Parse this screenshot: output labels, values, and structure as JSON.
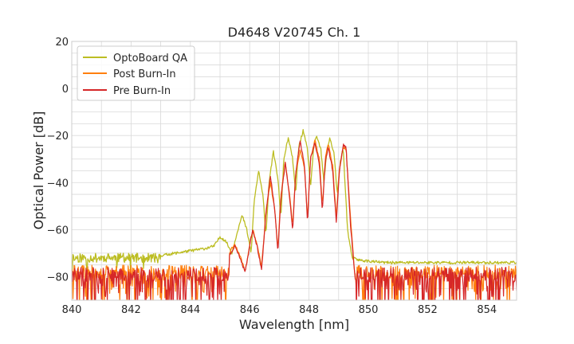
{
  "chart_data": {
    "type": "line",
    "title": "D4648 V20745 Ch. 1",
    "xlabel": "Wavelength [nm]",
    "ylabel": "Optical Power [dB]",
    "xlim": [
      840,
      855
    ],
    "ylim": [
      -90,
      20
    ],
    "xticks": [
      840,
      842,
      844,
      846,
      848,
      850,
      852,
      854
    ],
    "yticks": [
      -80,
      -60,
      -40,
      -20,
      0,
      20
    ],
    "grid": true,
    "legend_position": "top-left",
    "series": [
      {
        "name": "OptoBoard QA",
        "color": "#bcbd22",
        "noise_floor": -72,
        "points": [
          [
            843.0,
            -71
          ],
          [
            843.5,
            -70
          ],
          [
            844.0,
            -69
          ],
          [
            844.5,
            -68
          ],
          [
            844.8,
            -67
          ],
          [
            845.0,
            -63
          ],
          [
            845.2,
            -65
          ],
          [
            845.4,
            -70
          ],
          [
            845.6,
            -60
          ],
          [
            845.75,
            -54
          ],
          [
            845.9,
            -60
          ],
          [
            846.05,
            -70
          ],
          [
            846.15,
            -48
          ],
          [
            846.3,
            -35
          ],
          [
            846.45,
            -46
          ],
          [
            846.55,
            -62
          ],
          [
            846.65,
            -40
          ],
          [
            846.8,
            -27
          ],
          [
            846.95,
            -38
          ],
          [
            847.05,
            -55
          ],
          [
            847.15,
            -30
          ],
          [
            847.3,
            -21
          ],
          [
            847.45,
            -30
          ],
          [
            847.55,
            -45
          ],
          [
            847.65,
            -25
          ],
          [
            847.8,
            -18
          ],
          [
            847.95,
            -26
          ],
          [
            848.05,
            -42
          ],
          [
            848.15,
            -26
          ],
          [
            848.25,
            -20
          ],
          [
            848.4,
            -26
          ],
          [
            848.5,
            -40
          ],
          [
            848.6,
            -27
          ],
          [
            848.7,
            -21
          ],
          [
            848.85,
            -28
          ],
          [
            848.95,
            -45
          ],
          [
            849.05,
            -32
          ],
          [
            849.15,
            -25
          ],
          [
            849.3,
            -60
          ],
          [
            849.45,
            -72
          ],
          [
            849.7,
            -73
          ],
          [
            850.5,
            -74
          ],
          [
            852.0,
            -74
          ],
          [
            853.5,
            -74
          ],
          [
            855.0,
            -74
          ]
        ]
      },
      {
        "name": "Post Burn-In",
        "color": "#ff7f0e",
        "noise_floor": -78,
        "points": [
          [
            845.3,
            -70
          ],
          [
            845.5,
            -66
          ],
          [
            845.7,
            -72
          ],
          [
            845.85,
            -78
          ],
          [
            846.0,
            -66
          ],
          [
            846.1,
            -60
          ],
          [
            846.25,
            -66
          ],
          [
            846.4,
            -76
          ],
          [
            846.55,
            -52
          ],
          [
            846.7,
            -40
          ],
          [
            846.85,
            -52
          ],
          [
            846.95,
            -68
          ],
          [
            847.05,
            -46
          ],
          [
            847.2,
            -31
          ],
          [
            847.35,
            -46
          ],
          [
            847.45,
            -58
          ],
          [
            847.55,
            -36
          ],
          [
            847.7,
            -26
          ],
          [
            847.85,
            -34
          ],
          [
            847.95,
            -55
          ],
          [
            848.05,
            -30
          ],
          [
            848.2,
            -22
          ],
          [
            848.35,
            -30
          ],
          [
            848.45,
            -50
          ],
          [
            848.55,
            -30
          ],
          [
            848.65,
            -23
          ],
          [
            848.8,
            -33
          ],
          [
            848.92,
            -55
          ],
          [
            849.02,
            -35
          ],
          [
            849.15,
            -25
          ],
          [
            849.25,
            -26
          ],
          [
            849.4,
            -55
          ],
          [
            849.55,
            -80
          ]
        ]
      },
      {
        "name": "Pre Burn-In",
        "color": "#d62728",
        "noise_floor": -79,
        "points": [
          [
            845.3,
            -71
          ],
          [
            845.5,
            -67
          ],
          [
            845.7,
            -73
          ],
          [
            845.85,
            -78
          ],
          [
            846.0,
            -67
          ],
          [
            846.1,
            -60
          ],
          [
            846.25,
            -67
          ],
          [
            846.4,
            -77
          ],
          [
            846.55,
            -53
          ],
          [
            846.7,
            -37
          ],
          [
            846.85,
            -52
          ],
          [
            846.95,
            -70
          ],
          [
            847.05,
            -47
          ],
          [
            847.2,
            -32
          ],
          [
            847.35,
            -47
          ],
          [
            847.45,
            -60
          ],
          [
            847.55,
            -36
          ],
          [
            847.7,
            -22
          ],
          [
            847.85,
            -33
          ],
          [
            847.95,
            -57
          ],
          [
            848.05,
            -30
          ],
          [
            848.2,
            -23
          ],
          [
            848.35,
            -32
          ],
          [
            848.45,
            -52
          ],
          [
            848.55,
            -31
          ],
          [
            848.65,
            -25
          ],
          [
            848.8,
            -35
          ],
          [
            848.92,
            -57
          ],
          [
            849.02,
            -36
          ],
          [
            849.15,
            -24
          ],
          [
            849.25,
            -25
          ],
          [
            849.4,
            -58
          ],
          [
            849.55,
            -80
          ]
        ]
      }
    ]
  }
}
